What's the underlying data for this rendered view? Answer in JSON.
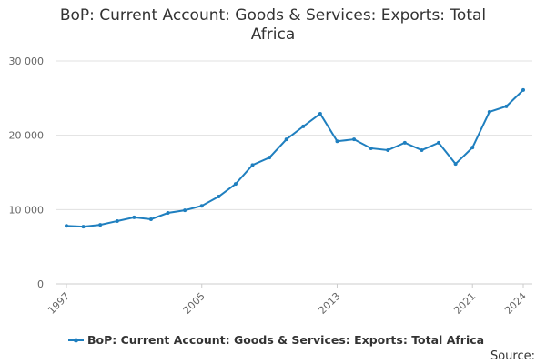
{
  "chart_data": {
    "type": "line",
    "title": "BoP: Current Account: Goods & Services: Exports: Total Africa",
    "x": [
      1997,
      1998,
      1999,
      2000,
      2001,
      2002,
      2003,
      2004,
      2005,
      2006,
      2007,
      2008,
      2009,
      2010,
      2011,
      2012,
      2013,
      2014,
      2015,
      2016,
      2017,
      2018,
      2019,
      2020,
      2021,
      2022,
      2023,
      2024
    ],
    "series": [
      {
        "name": "BoP: Current Account: Goods & Services: Exports: Total Africa",
        "color": "#1f7fbf",
        "values": [
          7800,
          7700,
          7950,
          8450,
          8950,
          8700,
          9550,
          9900,
          10500,
          11750,
          13450,
          16000,
          17000,
          19450,
          21200,
          22900,
          19200,
          19450,
          18250,
          18000,
          19000,
          18000,
          19000,
          16150,
          18350,
          23150,
          23900,
          26100
        ]
      }
    ],
    "xlim": [
      1997,
      2024
    ],
    "xticks": [
      1997,
      2005,
      2013,
      2021,
      2024
    ],
    "ylim": [
      0,
      30000
    ],
    "yticks": [
      0,
      {
        "value": 10000,
        "label": "10 000"
      },
      {
        "value": 20000,
        "label": "20 000"
      },
      {
        "value": 30000,
        "label": "30 000"
      }
    ],
    "grid": true,
    "source": "Source:"
  }
}
